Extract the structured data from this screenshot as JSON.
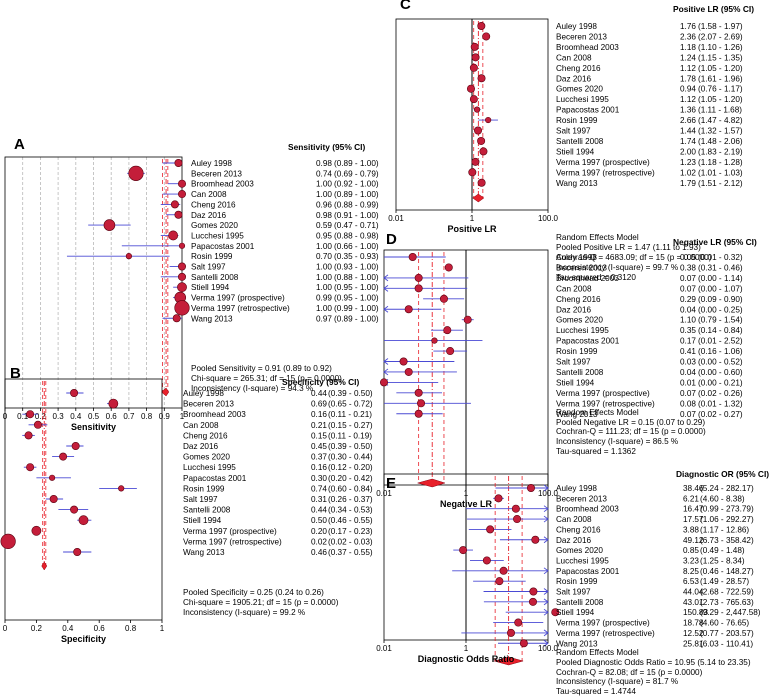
{
  "figure": {
    "studies": [
      "Auley 1998",
      "Beceren 2013",
      "Broomhead 2003",
      "Can 2008",
      "Cheng 2016",
      "Daz 2016",
      "Gomes 2020",
      "Lucchesi 1995",
      "Papacostas 2001",
      "Rosin 1999",
      "Salt 1997",
      "Santelli 2008",
      "Stiell 1994",
      "Verma 1997 (prospective)",
      "Verma 1997 (retrospective)",
      "Wang 2013"
    ],
    "colors": {
      "point": "#c41e3a",
      "ci": "#4a4ad4",
      "pooled": "#e8202a",
      "axis": "#000000",
      "grid": "#b8b8b8"
    }
  },
  "chart_data": [
    {
      "id": "A",
      "panel_label": "A",
      "type": "forest",
      "scale": "linear",
      "xlabel": "Sensitivity",
      "xlim": [
        0,
        1
      ],
      "ticks": [
        0,
        0.1,
        0.2,
        0.3,
        0.4,
        0.5,
        0.6,
        0.7,
        0.8,
        0.9,
        1
      ],
      "tick_labels": [
        "0",
        "0.1",
        "0.2",
        "0.3",
        "0.4",
        "0.5",
        "0.6",
        "0.7",
        "0.8",
        "0.9",
        "1"
      ],
      "header": "Sensitivity (95% CI)",
      "values": [
        0.98,
        0.74,
        1.0,
        1.0,
        0.96,
        0.98,
        0.59,
        0.95,
        1.0,
        0.7,
        1.0,
        1.0,
        1.0,
        0.99,
        1.0,
        0.97
      ],
      "lower": [
        0.89,
        0.69,
        0.92,
        0.89,
        0.88,
        0.91,
        0.47,
        0.88,
        0.66,
        0.35,
        0.93,
        0.88,
        0.95,
        0.95,
        0.99,
        0.89
      ],
      "upper": [
        1.0,
        0.79,
        1.0,
        1.0,
        0.99,
        1.0,
        0.71,
        0.98,
        1.0,
        0.93,
        1.0,
        1.0,
        1.0,
        1.0,
        1.0,
        1.0
      ],
      "sizes": [
        3,
        7,
        3,
        3,
        3,
        3,
        5,
        4,
        2,
        2,
        3,
        3,
        4,
        5,
        7,
        3
      ],
      "value_labels": [
        "0.98",
        "0.74",
        "1.00",
        "1.00",
        "0.96",
        "0.98",
        "0.59",
        "0.95",
        "1.00",
        "0.70",
        "1.00",
        "1.00",
        "1.00",
        "0.99",
        "1.00",
        "0.97"
      ],
      "ci_labels": [
        "(0.89 - 1.00)",
        "(0.69 - 0.79)",
        "(0.92 - 1.00)",
        "(0.89 - 1.00)",
        "(0.88 - 0.99)",
        "(0.91 - 1.00)",
        "(0.47 - 0.71)",
        "(0.88 - 0.98)",
        "(0.66 - 1.00)",
        "(0.35 - 0.93)",
        "(0.93 - 1.00)",
        "(0.88 - 1.00)",
        "(0.95 - 1.00)",
        "(0.95 - 1.00)",
        "(0.99 - 1.00)",
        "(0.89 - 1.00)"
      ],
      "pooled": {
        "value": 0.91,
        "lower": 0.89,
        "upper": 0.92
      },
      "summary": [
        "Pooled Sensitivity = 0.91 (0.89 to 0.92)",
        "Chi-square = 265.31; df = 15 (p = 0.0000)",
        "Inconsistency (I-square) = 94.3 %"
      ]
    },
    {
      "id": "B",
      "panel_label": "B",
      "type": "forest",
      "scale": "linear",
      "xlabel": "Specificity",
      "xlim": [
        0,
        1
      ],
      "ticks": [
        0,
        0.2,
        0.4,
        0.6,
        0.8,
        1
      ],
      "tick_labels": [
        "0",
        "0.2",
        "0.4",
        "0.6",
        "0.8",
        "1"
      ],
      "header": "Specificity (95% CI)",
      "values": [
        0.44,
        0.69,
        0.16,
        0.21,
        0.15,
        0.45,
        0.37,
        0.16,
        0.3,
        0.74,
        0.31,
        0.44,
        0.5,
        0.2,
        0.02,
        0.46
      ],
      "lower": [
        0.39,
        0.65,
        0.11,
        0.15,
        0.11,
        0.39,
        0.3,
        0.12,
        0.2,
        0.6,
        0.26,
        0.34,
        0.46,
        0.17,
        0.02,
        0.37
      ],
      "upper": [
        0.5,
        0.72,
        0.21,
        0.27,
        0.19,
        0.5,
        0.44,
        0.2,
        0.42,
        0.84,
        0.37,
        0.53,
        0.55,
        0.23,
        0.03,
        0.55
      ],
      "sizes": [
        3,
        4,
        3,
        3,
        3,
        3,
        3,
        3,
        2,
        2,
        3,
        3,
        4,
        4,
        7,
        3
      ],
      "value_labels": [
        "0.44",
        "0.69",
        "0.16",
        "0.21",
        "0.15",
        "0.45",
        "0.37",
        "0.16",
        "0.30",
        "0.74",
        "0.31",
        "0.44",
        "0.50",
        "0.20",
        "0.02",
        "0.46"
      ],
      "ci_labels": [
        "(0.39 - 0.50)",
        "(0.65 - 0.72)",
        "(0.11 - 0.21)",
        "(0.15 - 0.27)",
        "(0.11 - 0.19)",
        "(0.39 - 0.50)",
        "(0.30 - 0.44)",
        "(0.12 - 0.20)",
        "(0.20 - 0.42)",
        "(0.60 - 0.84)",
        "(0.26 - 0.37)",
        "(0.34 - 0.53)",
        "(0.46 - 0.55)",
        "(0.17 - 0.23)",
        "(0.02 - 0.03)",
        "(0.37 - 0.55)"
      ],
      "pooled": {
        "value": 0.25,
        "lower": 0.24,
        "upper": 0.26
      },
      "summary": [
        "Pooled Specificity = 0.25 (0.24 to 0.26)",
        "Chi-square = 1905.21; df = 15 (p = 0.0000)",
        "Inconsistency (I-square) = 99.2 %"
      ]
    },
    {
      "id": "C",
      "panel_label": "C",
      "type": "forest",
      "scale": "log",
      "xlabel": "Positive LR",
      "xlim": [
        0.01,
        100
      ],
      "ticks": [
        0.01,
        1,
        100
      ],
      "tick_labels": [
        "0.01",
        "1",
        "100.0"
      ],
      "header": "Positive LR (95% CI)",
      "values": [
        1.76,
        2.36,
        1.18,
        1.24,
        1.12,
        1.78,
        0.94,
        1.12,
        1.36,
        2.66,
        1.44,
        1.74,
        2.0,
        1.23,
        1.02,
        1.79
      ],
      "lower": [
        1.58,
        2.07,
        1.1,
        1.15,
        1.05,
        1.61,
        0.76,
        1.05,
        1.11,
        1.47,
        1.32,
        1.48,
        1.83,
        1.18,
        1.01,
        1.51
      ],
      "upper": [
        1.97,
        2.69,
        1.26,
        1.35,
        1.2,
        1.96,
        1.17,
        1.2,
        1.68,
        4.82,
        1.57,
        2.06,
        2.19,
        1.28,
        1.03,
        2.12
      ],
      "sizes": [
        3,
        3,
        3,
        3,
        3,
        3,
        3,
        3,
        2,
        2,
        3,
        3,
        3,
        3,
        3,
        3
      ],
      "value_labels": [
        "1.76",
        "2.36",
        "1.18",
        "1.24",
        "1.12",
        "1.78",
        "0.94",
        "1.12",
        "1.36",
        "2.66",
        "1.44",
        "1.74",
        "2.00",
        "1.23",
        "1.02",
        "1.79"
      ],
      "ci_labels": [
        "(1.58 - 1.97)",
        "(2.07 - 2.69)",
        "(1.10 - 1.26)",
        "(1.15 - 1.35)",
        "(1.05 - 1.20)",
        "(1.61 - 1.96)",
        "(0.76 - 1.17)",
        "(1.05 - 1.20)",
        "(1.11 - 1.68)",
        "(1.47 - 4.82)",
        "(1.32 - 1.57)",
        "(1.48 - 2.06)",
        "(1.83 - 2.19)",
        "(1.18 - 1.28)",
        "(1.01 - 1.03)",
        "(1.51 - 2.12)"
      ],
      "pooled": {
        "value": 1.47,
        "lower": 1.11,
        "upper": 1.93
      },
      "summary": [
        "Random Effects Model",
        "Pooled Positive LR = 1.47 (1.11 to 1.93)",
        "Cochran-Q = 4683.09; df = 15 (p = 0.0000)",
        "Inconsistency (I-square) = 99.7 %",
        "Tau-squared = 0.3120"
      ]
    },
    {
      "id": "D",
      "panel_label": "D",
      "type": "forest",
      "scale": "log",
      "xlabel": "Negative LR",
      "xlim": [
        0.01,
        100
      ],
      "ticks": [
        0.01,
        1,
        100
      ],
      "tick_labels": [
        "0.01",
        "1",
        "100.0"
      ],
      "header": "Negative LR (95% CI)",
      "values": [
        0.05,
        0.38,
        0.07,
        0.07,
        0.29,
        0.04,
        1.1,
        0.35,
        0.17,
        0.41,
        0.03,
        0.04,
        0.01,
        0.07,
        0.08,
        0.07
      ],
      "lower": [
        0.01,
        0.31,
        0.0,
        0.0,
        0.09,
        0.0,
        0.79,
        0.14,
        0.01,
        0.16,
        0.0,
        0.0,
        0.0,
        0.02,
        0.01,
        0.02
      ],
      "upper": [
        0.32,
        0.46,
        1.14,
        1.07,
        0.9,
        0.25,
        1.54,
        0.84,
        2.52,
        1.06,
        0.52,
        0.6,
        0.21,
        0.26,
        1.32,
        0.27
      ],
      "sizes": [
        3,
        3,
        3,
        3,
        3,
        3,
        3,
        3,
        2,
        3,
        3,
        3,
        3,
        3,
        3,
        3
      ],
      "value_labels": [
        "0.05",
        "0.38",
        "0.07",
        "0.07",
        "0.29",
        "0.04",
        "1.10",
        "0.35",
        "0.17",
        "0.41",
        "0.03",
        "0.04",
        "0.01",
        "0.07",
        "0.08",
        "0.07"
      ],
      "ci_labels": [
        "(0.01 - 0.32)",
        "(0.31 - 0.46)",
        "(0.00 - 1.14)",
        "(0.00 - 1.07)",
        "(0.09 - 0.90)",
        "(0.00 - 0.25)",
        "(0.79 - 1.54)",
        "(0.14 - 0.84)",
        "(0.01 - 2.52)",
        "(0.16 - 1.06)",
        "(0.00 - 0.52)",
        "(0.00 - 0.60)",
        "(0.00 - 0.21)",
        "(0.02 - 0.26)",
        "(0.01 - 1.32)",
        "(0.02 - 0.27)"
      ],
      "pooled": {
        "value": 0.15,
        "lower": 0.07,
        "upper": 0.29
      },
      "summary": [
        "Random Effects Model",
        "Pooled Negative LR = 0.15 (0.07 to 0.29)",
        "Cochran-Q = 111.23; df = 15 (p = 0.0000)",
        "Inconsistency (I-square) = 86.5 %",
        "Tau-squared = 1.1362"
      ]
    },
    {
      "id": "E",
      "panel_label": "E",
      "type": "forest",
      "scale": "log",
      "xlabel": "Diagnostic Odds Ratio",
      "xlim": [
        0.01,
        100
      ],
      "ticks": [
        0.01,
        1,
        100
      ],
      "tick_labels": [
        "0.01",
        "1",
        "100.0"
      ],
      "header": "Diagnostic OR (95% CI)",
      "values": [
        38.46,
        6.21,
        16.47,
        17.57,
        3.88,
        49.12,
        0.85,
        3.23,
        8.25,
        6.53,
        44.04,
        43.01,
        150.83,
        18.78,
        12.52,
        25.81
      ],
      "lower": [
        5.24,
        4.6,
        0.99,
        1.06,
        1.17,
        6.73,
        0.49,
        1.25,
        0.46,
        1.49,
        2.68,
        2.73,
        9.29,
        4.6,
        0.77,
        6.03
      ],
      "upper": [
        282.17,
        8.38,
        273.79,
        292.27,
        12.86,
        358.42,
        1.48,
        8.34,
        148.27,
        28.57,
        722.59,
        765.63,
        2447.58,
        76.65,
        203.57,
        110.41
      ],
      "sizes": [
        3,
        3,
        3,
        3,
        3,
        3,
        3,
        3,
        3,
        3,
        3,
        3,
        3,
        3,
        3,
        3
      ],
      "value_labels": [
        "38.46",
        "6.21",
        "16.47",
        "17.57",
        "3.88",
        "49.12",
        "0.85",
        "3.23",
        "8.25",
        "6.53",
        "44.04",
        "43.01",
        "150.83",
        "18.78",
        "12.52",
        "25.81"
      ],
      "ci_labels": [
        "(5.24 - 282.17)",
        "(4.60 - 8.38)",
        "(0.99 - 273.79)",
        "(1.06 - 292.27)",
        "(1.17 - 12.86)",
        "(6.73 - 358.42)",
        "(0.49 - 1.48)",
        "(1.25 - 8.34)",
        "(0.46 - 148.27)",
        "(1.49 - 28.57)",
        "(2.68 - 722.59)",
        "(2.73 - 765.63)",
        "(9.29 - 2,447.58)",
        "(4.60 - 76.65)",
        "(0.77 - 203.57)",
        "(6.03 - 110.41)"
      ],
      "pooled": {
        "value": 10.95,
        "lower": 5.14,
        "upper": 23.35
      },
      "summary": [
        "Random Effects Model",
        "Pooled Diagnostic Odds Ratio = 10.95 (5.14 to 23.35)",
        "Cochran-Q = 82.08; df = 15 (p = 0.0000)",
        "Inconsistency (I-square) = 81.7 %",
        "Tau-squared = 1.4744"
      ]
    }
  ]
}
